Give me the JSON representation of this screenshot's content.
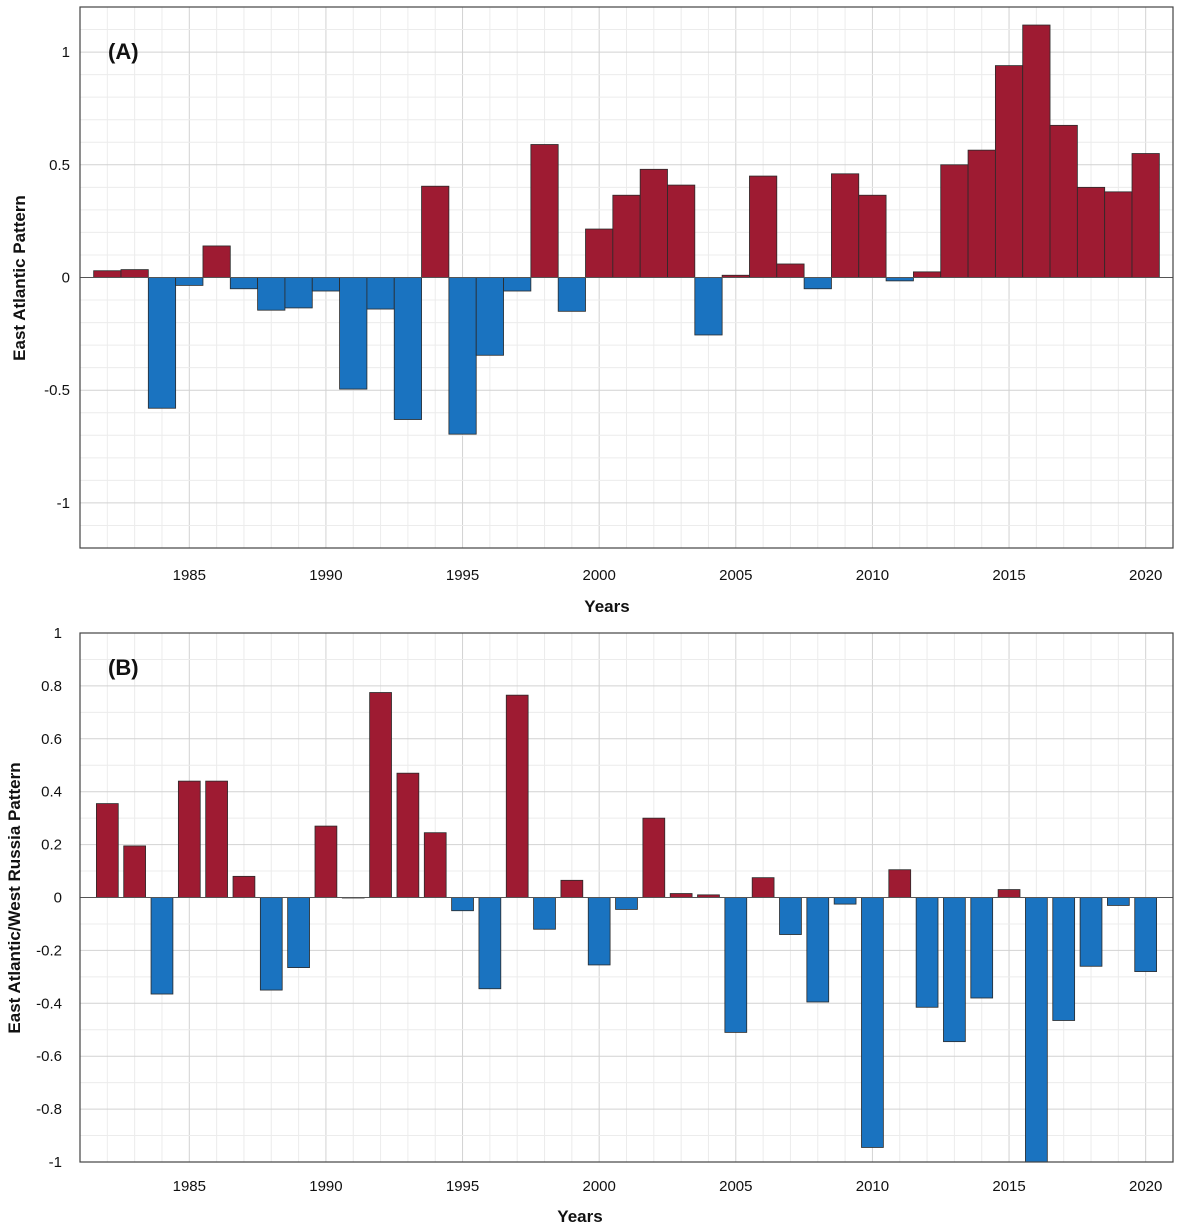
{
  "colors": {
    "positive": "#9e1b32",
    "negative": "#1a73c0"
  },
  "chart_data": [
    {
      "type": "bar",
      "panel_label": "(A)",
      "title": "",
      "xlabel": "Years",
      "ylabel": "East Atlantic Pattern",
      "xlim": [
        1981,
        2021
      ],
      "ylim": [
        -1.2,
        1.2
      ],
      "xticks": [
        1985,
        1990,
        1995,
        2000,
        2005,
        2010,
        2015,
        2020
      ],
      "yticks": [
        -1,
        -0.5,
        0,
        0.5,
        1
      ],
      "ytick_labels": [
        "-1",
        "-0.5",
        "0",
        "0.5",
        "1"
      ],
      "bar_width": 1.0,
      "x": [
        1982,
        1983,
        1984,
        1985,
        1986,
        1987,
        1988,
        1989,
        1990,
        1991,
        1992,
        1993,
        1994,
        1995,
        1996,
        1997,
        1998,
        1999,
        2000,
        2001,
        2002,
        2003,
        2004,
        2005,
        2006,
        2007,
        2008,
        2009,
        2010,
        2011,
        2012,
        2013,
        2014,
        2015,
        2016,
        2017,
        2018,
        2019,
        2020
      ],
      "values": [
        0.03,
        0.035,
        -0.58,
        -0.035,
        0.14,
        -0.05,
        -0.145,
        -0.135,
        -0.06,
        -0.495,
        -0.14,
        -0.63,
        0.405,
        -0.695,
        -0.345,
        -0.06,
        0.59,
        -0.15,
        0.215,
        0.365,
        0.48,
        0.41,
        -0.255,
        0.01,
        0.45,
        0.06,
        -0.05,
        0.46,
        0.365,
        -0.015,
        0.025,
        0.5,
        0.565,
        0.94,
        1.12,
        0.675,
        0.4,
        0.38,
        0.55
      ],
      "grid": true
    },
    {
      "type": "bar",
      "panel_label": "(B)",
      "title": "",
      "xlabel": "Years",
      "ylabel": "East Atlantic/West Russia Pattern",
      "xlim": [
        1981,
        2021
      ],
      "ylim": [
        -1,
        1
      ],
      "xticks": [
        1985,
        1990,
        1995,
        2000,
        2005,
        2010,
        2015,
        2020
      ],
      "yticks": [
        -1,
        -0.8,
        -0.6,
        -0.4,
        -0.2,
        0,
        0.2,
        0.4,
        0.6,
        0.8,
        1
      ],
      "ytick_labels": [
        "-1",
        "-0.8",
        "-0.6",
        "-0.4",
        "-0.2",
        "0",
        "0.2",
        "0.4",
        "0.6",
        "0.8",
        "1"
      ],
      "bar_width": 0.8,
      "x": [
        1982,
        1983,
        1984,
        1985,
        1986,
        1987,
        1988,
        1989,
        1990,
        1991,
        1992,
        1993,
        1994,
        1995,
        1996,
        1997,
        1998,
        1999,
        2000,
        2001,
        2002,
        2003,
        2004,
        2005,
        2006,
        2007,
        2008,
        2009,
        2010,
        2011,
        2012,
        2013,
        2014,
        2015,
        2016,
        2017,
        2018,
        2019,
        2020
      ],
      "values": [
        0.355,
        0.195,
        -0.365,
        0.44,
        0.44,
        0.08,
        -0.35,
        -0.265,
        0.27,
        0.0,
        0.775,
        0.47,
        0.245,
        -0.05,
        -0.345,
        0.765,
        -0.12,
        0.065,
        -0.255,
        -0.045,
        0.3,
        0.015,
        0.01,
        -0.51,
        0.075,
        -0.14,
        -0.395,
        -0.025,
        -0.945,
        0.105,
        -0.415,
        -0.545,
        -0.38,
        0.03,
        -1.0,
        -0.465,
        -0.26,
        -0.03,
        -0.28
      ],
      "grid": true
    }
  ]
}
